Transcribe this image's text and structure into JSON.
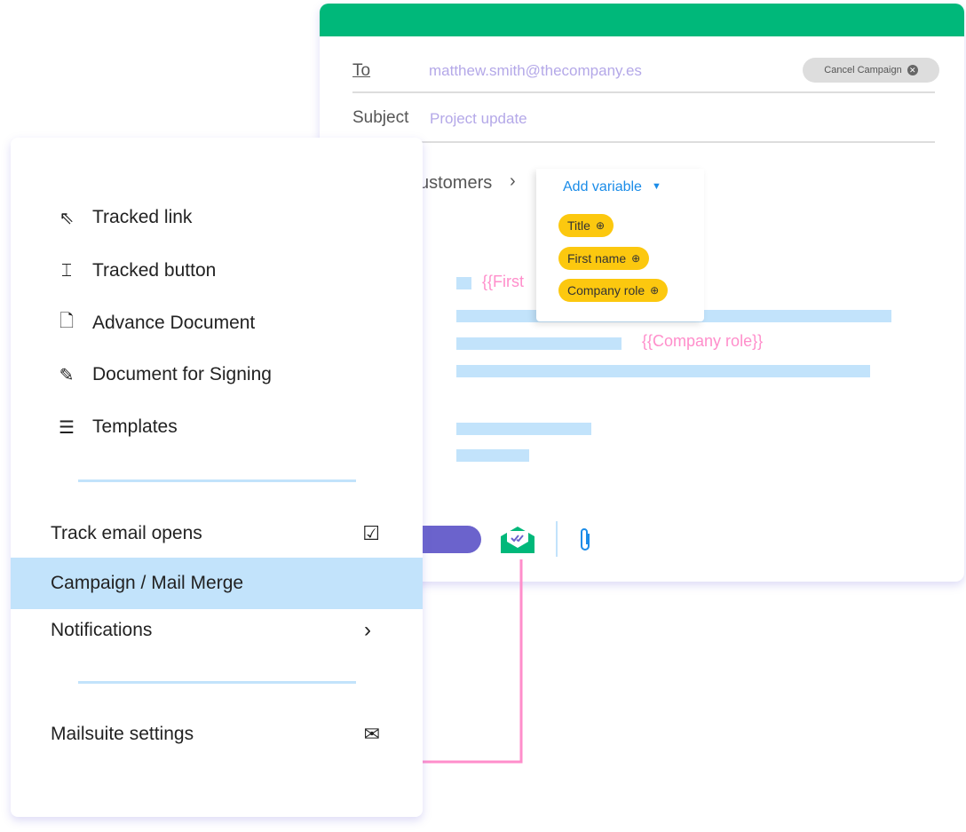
{
  "email": {
    "to_label": "To",
    "to_value": "matthew.smith@thecompany.es",
    "subject_label": "Subject",
    "subject_value": "Project update",
    "cancel_label": "Cancel Campaign",
    "breadcrumb": "ustomers",
    "add_variable": "Add variable",
    "variables": [
      "Title",
      "First name",
      "Company role"
    ],
    "var_first": "{{First",
    "var_company": "{{Company role}}"
  },
  "menu": {
    "items": [
      {
        "label": "Tracked link",
        "icon": "cursor-click-icon"
      },
      {
        "label": "Tracked button",
        "icon": "button-icon"
      },
      {
        "label": "Advance Document",
        "icon": "document-icon"
      },
      {
        "label": "Document for Signing",
        "icon": "signature-icon"
      },
      {
        "label": "Templates",
        "icon": "template-icon"
      }
    ],
    "track_opens": "Track email opens",
    "campaign": "Campaign / Mail Merge",
    "notifications": "Notifications",
    "settings": "Mailsuite settings"
  },
  "colors": {
    "green": "#00b87a",
    "highlight": "#c2e3fb",
    "chip": "#fcc80f",
    "pink": "#ff8ecb",
    "purple": "#6b63cc"
  }
}
